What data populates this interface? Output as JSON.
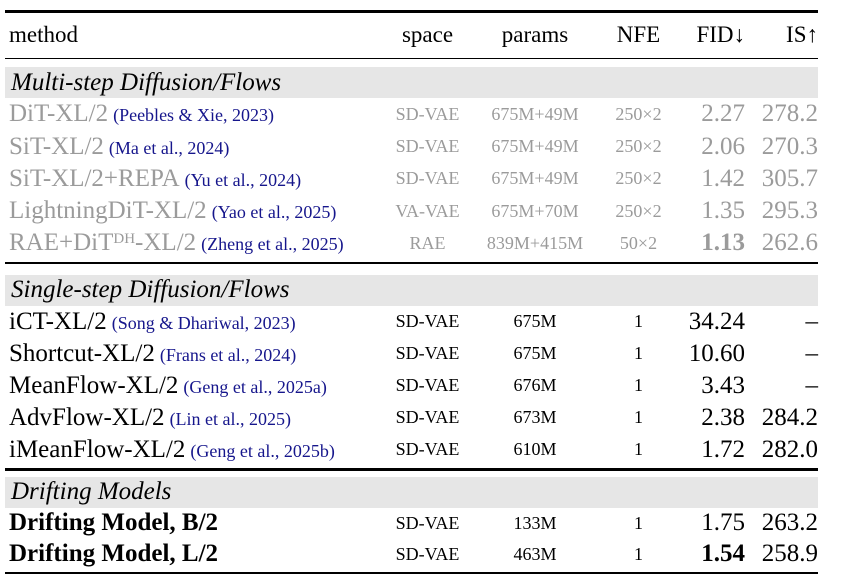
{
  "table": {
    "headers": {
      "method": "method",
      "space": "space",
      "params": "params",
      "nfe": "NFE",
      "fid": "FID↓",
      "is": "IS↑"
    },
    "colors": {
      "citation_link": "#16168c",
      "muted_row_text": "#9b9b9b",
      "section_band_bg": "#e6e6e6",
      "rule": "#000000"
    },
    "sections": [
      {
        "label": "Multi-step Diffusion/Flows",
        "rows": [
          {
            "name": "DiT-XL/2",
            "cite": "(Peebles & Xie, 2023)",
            "space": "SD-VAE",
            "params": "675M+49M",
            "nfe": "250×2",
            "fid": "2.27",
            "is": "278.2"
          },
          {
            "name": "SiT-XL/2",
            "cite": "(Ma et al., 2024)",
            "space": "SD-VAE",
            "params": "675M+49M",
            "nfe": "250×2",
            "fid": "2.06",
            "is": "270.3"
          },
          {
            "name": "SiT-XL/2+REPA",
            "cite": "(Yu et al., 2024)",
            "space": "SD-VAE",
            "params": "675M+49M",
            "nfe": "250×2",
            "fid": "1.42",
            "is": "305.7"
          },
          {
            "name": "LightningDiT-XL/2",
            "cite": "(Yao et al., 2025)",
            "space": "VA-VAE",
            "params": "675M+70M",
            "nfe": "250×2",
            "fid": "1.35",
            "is": "295.3"
          },
          {
            "name": "RAE+DiT",
            "sup": "DH",
            "post": "-XL/2",
            "cite": "(Zheng et al., 2025)",
            "space": "RAE",
            "params": "839M+415M",
            "nfe": "50×2",
            "fid": "1.13",
            "is": "262.6"
          }
        ]
      },
      {
        "label": "Single-step Diffusion/Flows",
        "rows": [
          {
            "name": "iCT-XL/2",
            "cite": "(Song & Dhariwal, 2023)",
            "space": "SD-VAE",
            "params": "675M",
            "nfe": "1",
            "fid": "34.24",
            "is": "–"
          },
          {
            "name": "Shortcut-XL/2",
            "cite": "(Frans et al., 2024)",
            "space": "SD-VAE",
            "params": "675M",
            "nfe": "1",
            "fid": "10.60",
            "is": "–"
          },
          {
            "name": "MeanFlow-XL/2",
            "cite": "(Geng et al., 2025a)",
            "space": "SD-VAE",
            "params": "676M",
            "nfe": "1",
            "fid": "3.43",
            "is": "–"
          },
          {
            "name": "AdvFlow-XL/2",
            "cite": "(Lin et al., 2025)",
            "space": "SD-VAE",
            "params": "673M",
            "nfe": "1",
            "fid": "2.38",
            "is": "284.2"
          },
          {
            "name": "iMeanFlow-XL/2",
            "cite": "(Geng et al., 2025b)",
            "space": "SD-VAE",
            "params": "610M",
            "nfe": "1",
            "fid": "1.72",
            "is": "282.0"
          }
        ]
      },
      {
        "label": "Drifting Models",
        "rows": [
          {
            "name": "Drifting Model, B/2",
            "space": "SD-VAE",
            "params": "133M",
            "nfe": "1",
            "fid": "1.75",
            "is": "263.2"
          },
          {
            "name": "Drifting Model, L/2",
            "space": "SD-VAE",
            "params": "463M",
            "nfe": "1",
            "fid": "1.54",
            "is": "258.9"
          }
        ]
      }
    ]
  }
}
